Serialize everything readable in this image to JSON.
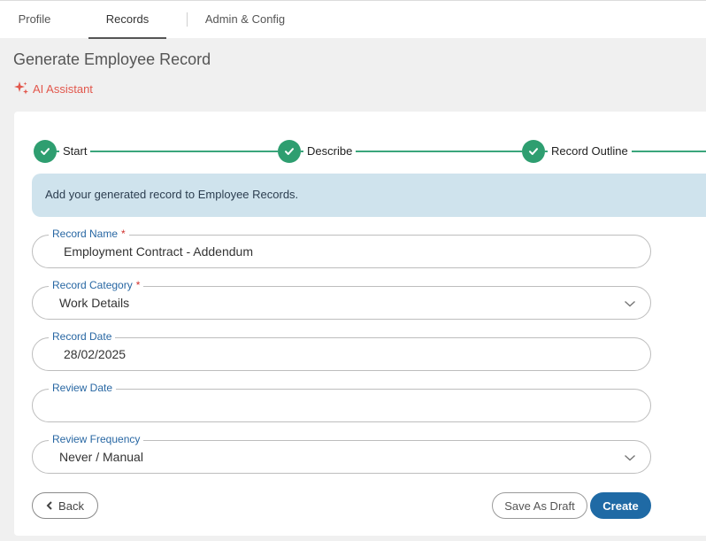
{
  "tabs": [
    {
      "label": "Profile"
    },
    {
      "label": "Records"
    },
    {
      "label": "Admin & Config"
    }
  ],
  "page": {
    "title": "Generate Employee Record",
    "ai_assistant_label": "AI Assistant",
    "ai_icon": "sparkle-icon"
  },
  "steps": [
    {
      "label": "Start",
      "status": "complete"
    },
    {
      "label": "Describe",
      "status": "complete"
    },
    {
      "label": "Record Outline",
      "status": "complete"
    }
  ],
  "info_message": "Add your generated record to Employee Records.",
  "form": {
    "record_name": {
      "label": "Record Name",
      "required_mark": "*",
      "value": "Employment Contract - Addendum"
    },
    "record_category": {
      "label": "Record Category",
      "required_mark": "*",
      "value": "Work Details"
    },
    "record_date": {
      "label": "Record Date",
      "value": "28/02/2025"
    },
    "review_date": {
      "label": "Review Date",
      "value": ""
    },
    "review_frequency": {
      "label": "Review Frequency",
      "value": "Never / Manual"
    }
  },
  "buttons": {
    "back": "Back",
    "save_draft": "Save As Draft",
    "create": "Create"
  },
  "colors": {
    "step_complete": "#2e9e70",
    "info_bg": "#cfe3ed",
    "label_blue": "#2867a3",
    "required_red": "#d0312d",
    "primary_button": "#1f6aa5",
    "ai_accent": "#e2574c"
  }
}
